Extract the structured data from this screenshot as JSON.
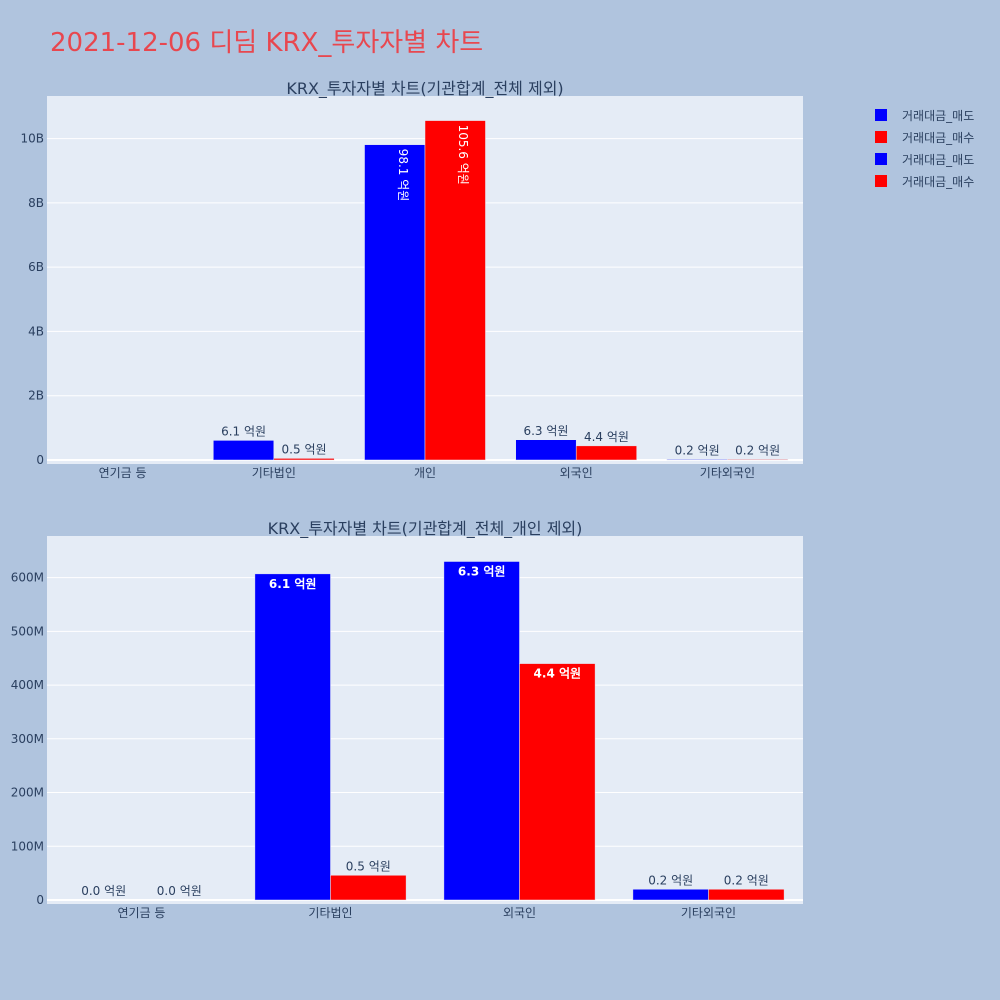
{
  "title": "2021-12-06 디딤 KRX_투자자별 차트",
  "legend": [
    {
      "name": "거래대금_매도",
      "color": "#0000ff"
    },
    {
      "name": "거래대금_매수",
      "color": "#ff0000"
    },
    {
      "name": "거래대금_매도",
      "color": "#0000ff"
    },
    {
      "name": "거래대금_매수",
      "color": "#ff0000"
    }
  ],
  "chart_data": [
    {
      "type": "bar",
      "title": "KRX_투자자별 차트(기관합계_전체 제외)",
      "categories": [
        "연기금 등",
        "기타법인",
        "개인",
        "외국인",
        "기타외국인"
      ],
      "series": [
        {
          "name": "거래대금_매도",
          "color": "#0000ff",
          "values": [
            0,
            610000000,
            9810000000,
            630000000,
            20000000
          ],
          "labels": [
            "",
            "6.1 억원",
            "98.1 억원",
            "6.3 억원",
            "0.2 억원"
          ]
        },
        {
          "name": "거래대금_매수",
          "color": "#ff0000",
          "values": [
            0,
            50000000,
            10560000000,
            440000000,
            20000000
          ],
          "labels": [
            "",
            "0.5 억원",
            "105.6 억원",
            "4.4 억원",
            "0.2 억원"
          ]
        }
      ],
      "ylim": [
        0,
        11200000000
      ],
      "yticks": [
        0,
        2000000000,
        4000000000,
        6000000000,
        8000000000,
        10000000000
      ],
      "ytick_labels": [
        "0",
        "2B",
        "4B",
        "6B",
        "8B",
        "10B"
      ],
      "grid": true
    },
    {
      "type": "bar",
      "title": "KRX_투자자별 차트(기관합계_전체_개인 제외)",
      "categories": [
        "연기금 등",
        "기타법인",
        "외국인",
        "기타외국인"
      ],
      "series": [
        {
          "name": "거래대금_매도",
          "color": "#0000ff",
          "values": [
            0,
            607000000,
            630000000,
            20000000
          ],
          "labels": [
            "0.0 억원",
            "6.1 억원",
            "6.3 억원",
            "0.2 억원"
          ]
        },
        {
          "name": "거래대금_매수",
          "color": "#ff0000",
          "values": [
            0,
            46000000,
            440000000,
            20000000
          ],
          "labels": [
            "0.0 억원",
            "0.5 억원",
            "4.4 억원",
            "0.2 억원"
          ]
        }
      ],
      "ylim": [
        0,
        670000000
      ],
      "yticks": [
        0,
        100000000,
        200000000,
        300000000,
        400000000,
        500000000,
        600000000
      ],
      "ytick_labels": [
        "0",
        "100M",
        "200M",
        "300M",
        "400M",
        "500M",
        "600M"
      ],
      "grid": true
    }
  ]
}
